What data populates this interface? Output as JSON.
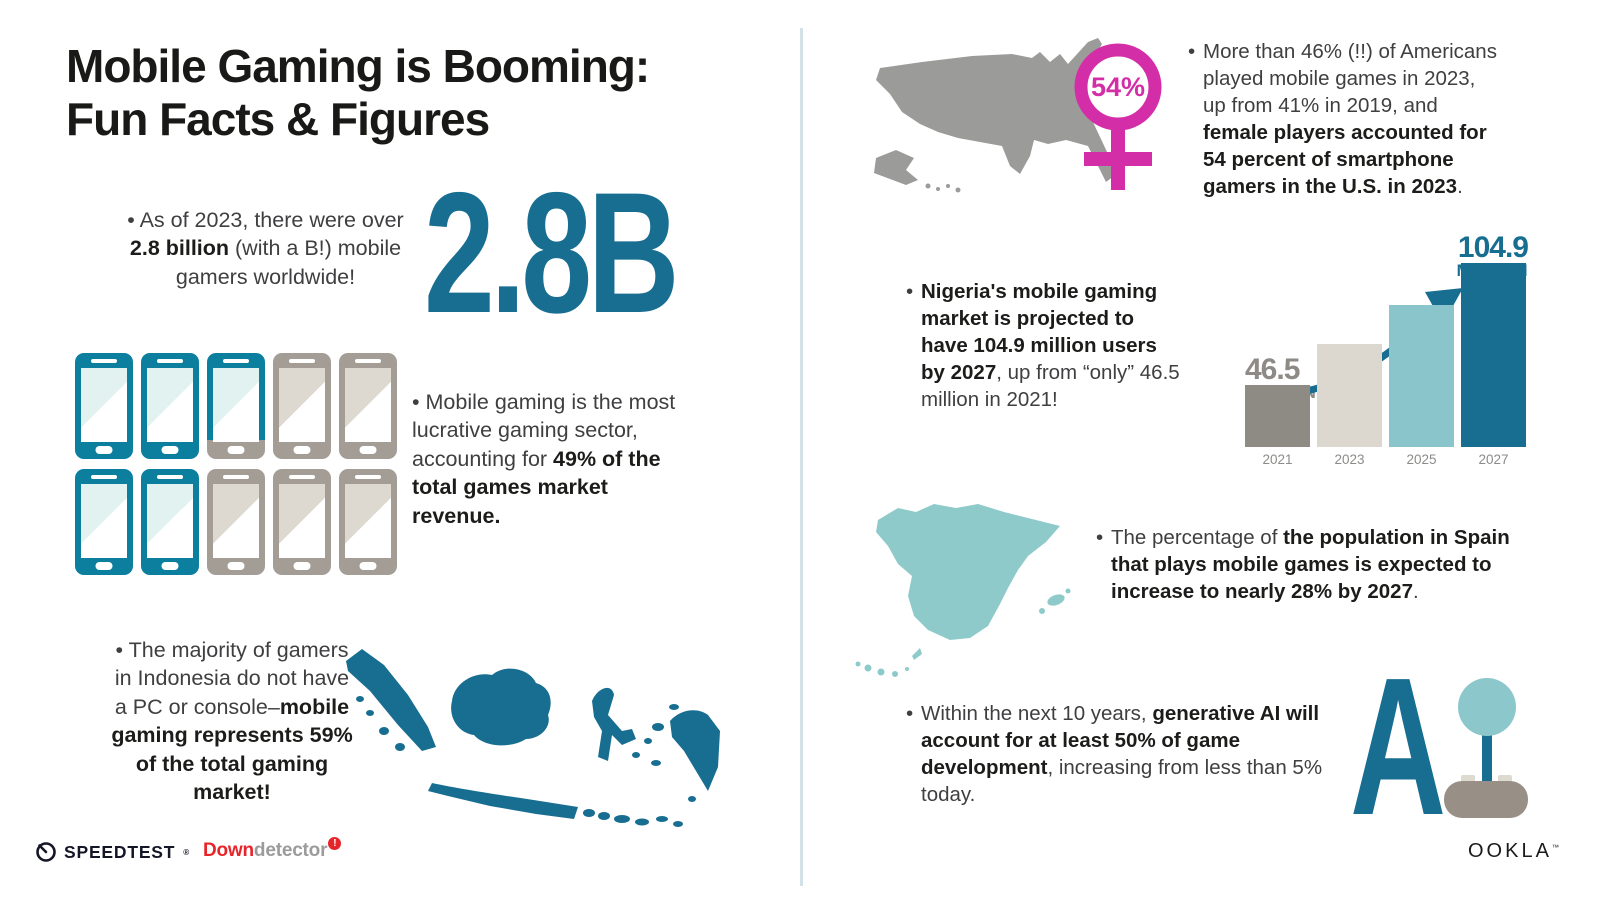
{
  "title": {
    "line1": "Mobile Gaming is Booming:",
    "line2": "Fun Facts & Figures"
  },
  "bullet_glyph": "•",
  "facts": {
    "gamers": {
      "pre": "As of 2023, there were over ",
      "bold": "2.8 billion",
      "post": " (with a B!) mobile gamers worldwide!"
    },
    "revenue": {
      "pre": "Mobile gaming is the most lucrative gaming sector, accounting for ",
      "bold": "49% of the total games market revenue.",
      "post": ""
    },
    "indonesia": {
      "pre": "The majority of gamers in Indonesia do not have a PC or console–",
      "bold": "mobile gaming represents 59% of the total gaming market!",
      "post": ""
    },
    "us": {
      "pre": "More than 46% (!!) of Americans played mobile games in 2023, up from 41% in 2019, and ",
      "bold": "female players accounted for 54 percent of smartphone gamers in the U.S. in 2023",
      "post": "."
    },
    "nigeria": {
      "pre": "",
      "bold": "Nigeria's mobile gaming market is projected to have 104.9 million users by 2027",
      "post": ", up from “only” 46.5 million in 2021!"
    },
    "spain": {
      "pre": "The percentage of ",
      "bold": "the population in Spain that plays mobile games is expected to increase to nearly 28% by 2027",
      "post": "."
    },
    "ai": {
      "pre": "Within the next 10 years, ",
      "bold": "generative AI will account for at least 50% of game development",
      "post": ", increasing from less than 5% today."
    }
  },
  "stats": {
    "big_number": "2.8B",
    "female_share": "54%"
  },
  "phone_grid": {
    "rows": 2,
    "cols": 5,
    "states": [
      "teal",
      "teal",
      "split",
      "gray",
      "gray",
      "teal",
      "teal",
      "gray",
      "gray",
      "gray"
    ]
  },
  "chart_data": {
    "type": "bar",
    "categories": [
      "2021",
      "2023",
      "2025",
      "2027"
    ],
    "values": [
      46.5,
      66,
      85,
      104.9
    ],
    "unit": "million users",
    "bar_colors": [
      "#8E8A84",
      "#DCD8CF",
      "#8AC5CB",
      "#186E91"
    ],
    "annotations": [
      {
        "category": "2021",
        "value_label": "46.5",
        "unit_label": "MILLION",
        "color": "#8E8A85"
      },
      {
        "category": "2027",
        "value_label": "104.9",
        "unit_label": "MILLION",
        "color": "#186E91"
      }
    ],
    "ylim": [
      0,
      110
    ],
    "grid": false,
    "legend": false
  },
  "ai_graphic": {
    "letter": "A"
  },
  "logos": {
    "speedtest": {
      "label": "SPEEDTEST",
      "mark": "®"
    },
    "downdetector": {
      "part1": "Down",
      "part2": "detector",
      "badge": "!"
    },
    "ookla": {
      "label": "OOKLA",
      "mark": "™"
    }
  },
  "icons": {
    "female_symbol": "venus-female-icon",
    "growth_arrow": "curved-up-arrow-icon",
    "speedtest_gauge": "gauge-icon",
    "maps": [
      "usa-map",
      "indonesia-map",
      "spain-map"
    ]
  },
  "colors": {
    "dark_teal": "#186E91",
    "phone_teal": "#0D7F9E",
    "light_teal": "#8CC7CB",
    "beige": "#DCD8CF",
    "gray": "#9B9B99",
    "magenta": "#D42DA8",
    "red": "#E6252B",
    "navy": "#141526",
    "divider": "#D2E2E6"
  }
}
